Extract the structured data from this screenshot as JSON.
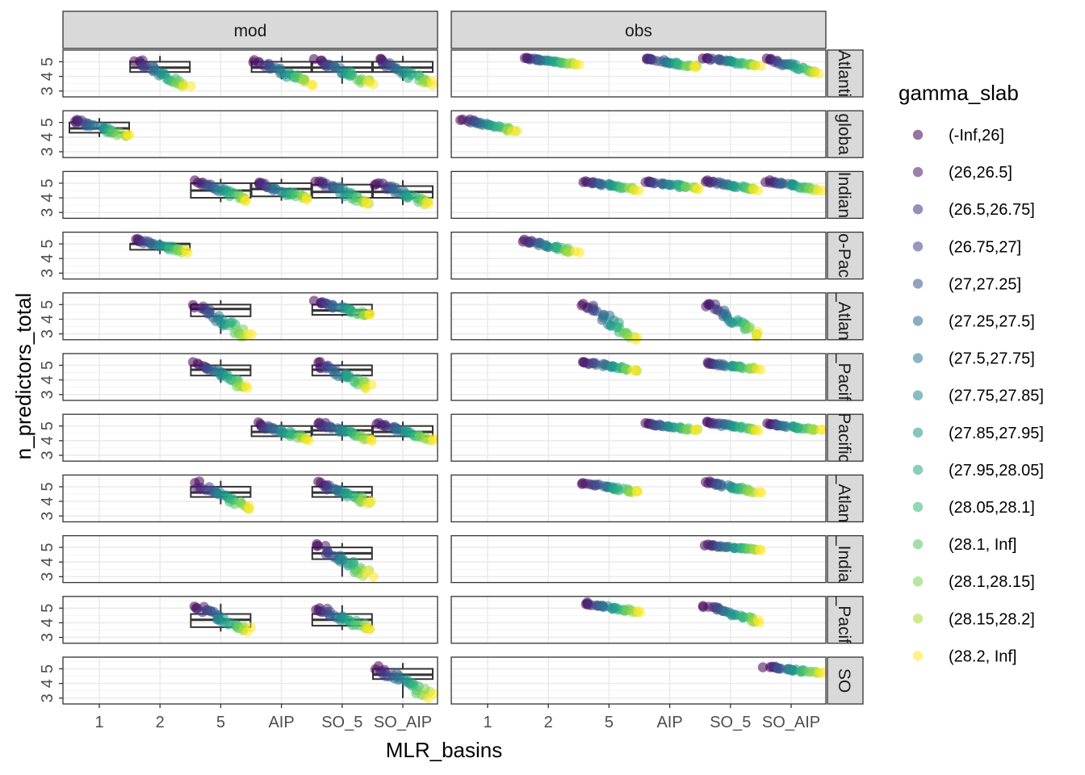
{
  "chart_data": {
    "type": "scatter",
    "xlabel": "MLR_basins",
    "ylabel": "n_predictors_total",
    "x_categories": [
      "1",
      "2",
      "5",
      "AIP",
      "SO_5",
      "SO_AIP"
    ],
    "y_ticks": [
      3,
      4,
      5
    ],
    "ylim": [
      2.6,
      5.8
    ],
    "col_facets": [
      "mod",
      "obs"
    ],
    "row_facets": [
      "Atlantic",
      "global",
      "Indian",
      "Indo-Pacific",
      "N_Atlantic",
      "N_Pacific",
      "Pacific",
      "S_Atlantic",
      "S_Indian",
      "S_Pacific",
      "SO"
    ],
    "row_strip_visible_text": [
      "Atlanti",
      "globa",
      "Indian",
      "o-Pac",
      "_Atlan",
      "_Pacif",
      "Pacific",
      "_Atlan",
      "_India",
      "_Pacif",
      "SO"
    ],
    "grid": true,
    "legend": {
      "title": "gamma_slab",
      "position": "right",
      "entries": [
        "(-Inf,26]",
        "(26,26.5]",
        "(26.5,26.75]",
        "(26.75,27]",
        "(27,27.25]",
        "(27.25,27.5]",
        "(27.5,27.75]",
        "(27.75,27.85]",
        "(27.85,27.95]",
        "(27.95,28.05]",
        "(28.05,28.1]",
        "(28.1, Inf]",
        "(28.1,28.15]",
        "(28.15,28.2]",
        "(28.2, Inf]"
      ],
      "colors": [
        "#440154",
        "#481a6c",
        "#472f7d",
        "#414487",
        "#39568c",
        "#31688e",
        "#2a788e",
        "#23888e",
        "#1f988b",
        "#22a884",
        "#35b779",
        "#54c568",
        "#7ad151",
        "#a5db36",
        "#fde725"
      ]
    },
    "boxes": {
      "mod": [
        [
          {
            "x": "2",
            "q1": 4.3,
            "med": 4.6,
            "q3": 5.0,
            "lo": 4.0,
            "hi": 5.4
          },
          {
            "x": "AIP",
            "q1": 4.3,
            "med": 4.6,
            "q3": 5.0,
            "lo": 3.8,
            "hi": 5.3
          },
          {
            "x": "SO_5",
            "q1": 4.3,
            "med": 4.6,
            "q3": 5.0,
            "lo": 3.5,
            "hi": 5.4
          },
          {
            "x": "SO_AIP",
            "q1": 4.3,
            "med": 4.6,
            "q3": 5.0,
            "lo": 3.7,
            "hi": 5.4
          }
        ],
        [
          {
            "x": "1",
            "q1": 4.3,
            "med": 4.6,
            "q3": 5.0,
            "lo": 4.0,
            "hi": 5.3
          }
        ],
        [
          {
            "x": "5",
            "q1": 4.0,
            "med": 4.5,
            "q3": 5.0,
            "lo": 3.7,
            "hi": 5.3
          },
          {
            "x": "AIP",
            "q1": 4.1,
            "med": 4.6,
            "q3": 5.0,
            "lo": 3.8,
            "hi": 5.3
          },
          {
            "x": "SO_5",
            "q1": 4.0,
            "med": 4.4,
            "q3": 4.9,
            "lo": 3.6,
            "hi": 5.4
          },
          {
            "x": "SO_AIP",
            "q1": 4.0,
            "med": 4.4,
            "q3": 4.8,
            "lo": 3.5,
            "hi": 5.2
          }
        ],
        [
          {
            "x": "2",
            "q1": 4.6,
            "med": 5.0,
            "q3": 5.0,
            "lo": 4.3,
            "hi": 5.3
          }
        ],
        [
          {
            "x": "5",
            "q1": 4.2,
            "med": 4.7,
            "q3": 5.0,
            "lo": 3.0,
            "hi": 5.3
          },
          {
            "x": "SO_5",
            "q1": 4.3,
            "med": 4.6,
            "q3": 5.0,
            "lo": 4.2,
            "hi": 5.3
          }
        ],
        [
          {
            "x": "5",
            "q1": 4.3,
            "med": 4.7,
            "q3": 5.0,
            "lo": 3.8,
            "hi": 5.4
          },
          {
            "x": "SO_5",
            "q1": 4.3,
            "med": 4.7,
            "q3": 5.0,
            "lo": 3.8,
            "hi": 5.3
          }
        ],
        [
          {
            "x": "AIP",
            "q1": 4.3,
            "med": 4.6,
            "q3": 5.0,
            "lo": 4.0,
            "hi": 5.3
          },
          {
            "x": "SO_5",
            "q1": 4.4,
            "med": 4.7,
            "q3": 5.0,
            "lo": 4.0,
            "hi": 5.3
          },
          {
            "x": "SO_AIP",
            "q1": 4.3,
            "med": 4.6,
            "q3": 5.0,
            "lo": 4.0,
            "hi": 5.3
          }
        ],
        [
          {
            "x": "5",
            "q1": 4.3,
            "med": 4.6,
            "q3": 5.0,
            "lo": 3.8,
            "hi": 5.4
          },
          {
            "x": "SO_5",
            "q1": 4.3,
            "med": 4.6,
            "q3": 5.0,
            "lo": 4.0,
            "hi": 5.3
          }
        ],
        [
          {
            "x": "SO_5",
            "q1": 4.2,
            "med": 4.6,
            "q3": 5.0,
            "lo": 3.0,
            "hi": 5.3
          }
        ],
        [
          {
            "x": "5",
            "q1": 3.7,
            "med": 4.2,
            "q3": 4.6,
            "lo": 3.4,
            "hi": 5.3
          },
          {
            "x": "SO_5",
            "q1": 3.8,
            "med": 4.2,
            "q3": 4.6,
            "lo": 3.5,
            "hi": 5.2
          }
        ],
        [
          {
            "x": "SO_AIP",
            "q1": 4.3,
            "med": 4.6,
            "q3": 5.0,
            "lo": 3.0,
            "hi": 5.4
          }
        ]
      ],
      "obs": []
    },
    "point_clouds": {
      "mod": [
        [
          {
            "x": "2",
            "lo": 3.2,
            "hi": 5.3
          },
          {
            "x": "AIP",
            "lo": 3.4,
            "hi": 5.2
          },
          {
            "x": "SO_5",
            "lo": 3.4,
            "hi": 5.3
          },
          {
            "x": "SO_AIP",
            "lo": 3.4,
            "hi": 5.3
          }
        ],
        [
          {
            "x": "1",
            "lo": 4.0,
            "hi": 5.3
          }
        ],
        [
          {
            "x": "5",
            "lo": 3.8,
            "hi": 5.3
          },
          {
            "x": "AIP",
            "lo": 3.8,
            "hi": 5.2
          },
          {
            "x": "SO_5",
            "lo": 3.5,
            "hi": 5.3
          },
          {
            "x": "SO_AIP",
            "lo": 3.5,
            "hi": 5.1
          }
        ],
        [
          {
            "x": "2",
            "lo": 4.4,
            "hi": 5.4
          }
        ],
        [
          {
            "x": "5",
            "lo": 2.6,
            "hi": 5.3
          },
          {
            "x": "SO_5",
            "lo": 4.2,
            "hi": 5.3
          }
        ],
        [
          {
            "x": "5",
            "lo": 3.4,
            "hi": 5.4
          },
          {
            "x": "SO_5",
            "lo": 3.4,
            "hi": 5.3
          }
        ],
        [
          {
            "x": "AIP",
            "lo": 4.0,
            "hi": 5.3
          },
          {
            "x": "SO_5",
            "lo": 4.0,
            "hi": 5.3
          },
          {
            "x": "SO_AIP",
            "lo": 4.0,
            "hi": 5.3
          }
        ],
        [
          {
            "x": "5",
            "lo": 3.4,
            "hi": 5.4
          },
          {
            "x": "SO_5",
            "lo": 3.8,
            "hi": 5.4
          }
        ],
        [
          {
            "x": "SO_5",
            "lo": 3.0,
            "hi": 5.3
          }
        ],
        [
          {
            "x": "5",
            "lo": 3.4,
            "hi": 5.3
          },
          {
            "x": "SO_5",
            "lo": 3.5,
            "hi": 5.2
          }
        ],
        [
          {
            "x": "SO_AIP",
            "lo": 3.0,
            "hi": 5.4
          }
        ]
      ],
      "obs": [
        [
          {
            "x": "2",
            "lo": 4.8,
            "hi": 5.3
          },
          {
            "x": "AIP",
            "lo": 4.6,
            "hi": 5.3
          },
          {
            "x": "SO_5",
            "lo": 4.7,
            "hi": 5.3
          },
          {
            "x": "SO_AIP",
            "lo": 4.2,
            "hi": 5.3
          }
        ],
        [
          {
            "x": "1",
            "lo": 4.4,
            "hi": 5.3
          }
        ],
        [
          {
            "x": "5",
            "lo": 4.5,
            "hi": 5.2
          },
          {
            "x": "AIP",
            "lo": 4.6,
            "hi": 5.2
          },
          {
            "x": "SO_5",
            "lo": 4.5,
            "hi": 5.2
          },
          {
            "x": "SO_AIP",
            "lo": 4.5,
            "hi": 5.2
          }
        ],
        [
          {
            "x": "2",
            "lo": 4.4,
            "hi": 5.3
          }
        ],
        [
          {
            "x": "5",
            "lo": 2.6,
            "hi": 5.3
          },
          {
            "x": "SO_5",
            "lo": 2.8,
            "hi": 5.4
          }
        ],
        [
          {
            "x": "5",
            "lo": 4.6,
            "hi": 5.3
          },
          {
            "x": "SO_5",
            "lo": 4.7,
            "hi": 5.2
          }
        ],
        [
          {
            "x": "AIP",
            "lo": 4.7,
            "hi": 5.2
          },
          {
            "x": "SO_5",
            "lo": 4.7,
            "hi": 5.3
          },
          {
            "x": "SO_AIP",
            "lo": 4.7,
            "hi": 5.2
          }
        ],
        [
          {
            "x": "5",
            "lo": 4.6,
            "hi": 5.3
          },
          {
            "x": "SO_5",
            "lo": 4.6,
            "hi": 5.4
          }
        ],
        [
          {
            "x": "SO_5",
            "lo": 4.8,
            "hi": 5.2
          }
        ],
        [
          {
            "x": "5",
            "lo": 4.7,
            "hi": 5.4
          },
          {
            "x": "SO_5",
            "lo": 4.0,
            "hi": 5.3
          }
        ],
        [
          {
            "x": "SO_AIP",
            "lo": 4.7,
            "hi": 5.2
          }
        ]
      ]
    }
  }
}
